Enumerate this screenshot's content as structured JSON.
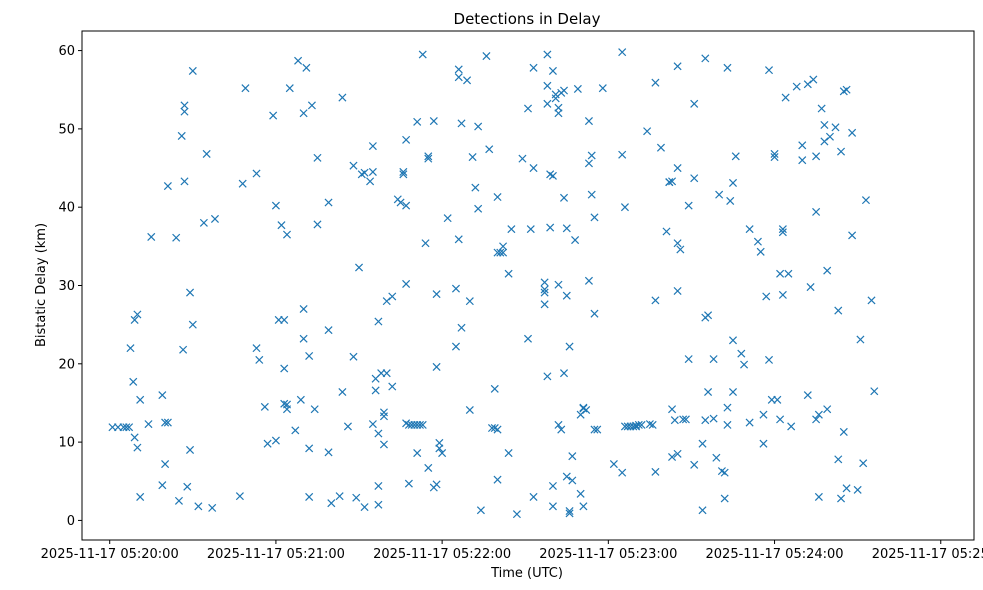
{
  "chart_data": {
    "type": "scatter",
    "title": "Detections in Delay",
    "xlabel": "Time (UTC)",
    "ylabel": "Bistatic Delay (km)",
    "marker": "x",
    "color": "#1f77b4",
    "xlim": [
      -10,
      312
    ],
    "ylim": [
      -2.5,
      62.5
    ],
    "x_units": "seconds after 2025-11-17 05:20:00",
    "x_ticks": [
      0,
      60,
      120,
      180,
      240,
      300
    ],
    "x_tick_labels": [
      "2025-11-17 05:20:00",
      "2025-11-17 05:21:00",
      "2025-11-17 05:22:00",
      "2025-11-17 05:23:00",
      "2025-11-17 05:24:00",
      "2025-11-17 05:25:00"
    ],
    "y_ticks": [
      0,
      10,
      20,
      30,
      40,
      50,
      60
    ],
    "y_tick_labels": [
      "0",
      "10",
      "20",
      "30",
      "40",
      "50",
      "60"
    ],
    "legend": false,
    "grid": false,
    "points": [
      [
        1,
        11.9
      ],
      [
        3,
        11.9
      ],
      [
        5,
        11.9
      ],
      [
        6,
        11.9
      ],
      [
        7,
        11.9
      ],
      [
        7.5,
        22
      ],
      [
        8.5,
        17.7
      ],
      [
        9,
        25.6
      ],
      [
        10,
        26.3
      ],
      [
        9,
        10.6
      ],
      [
        10,
        9.3
      ],
      [
        11,
        15.4
      ],
      [
        11,
        3
      ],
      [
        14,
        12.3
      ],
      [
        15,
        36.2
      ],
      [
        19,
        16
      ],
      [
        19,
        4.5
      ],
      [
        20,
        7.2
      ],
      [
        20,
        12.5
      ],
      [
        21,
        12.5
      ],
      [
        21,
        42.7
      ],
      [
        24,
        36.1
      ],
      [
        25,
        2.5
      ],
      [
        26,
        49.1
      ],
      [
        27,
        53
      ],
      [
        27,
        52.2
      ],
      [
        27,
        43.3
      ],
      [
        26.5,
        21.8
      ],
      [
        28,
        4.3
      ],
      [
        29,
        29.1
      ],
      [
        29,
        9
      ],
      [
        30,
        25
      ],
      [
        30,
        57.4
      ],
      [
        32,
        1.8
      ],
      [
        34,
        38
      ],
      [
        35,
        46.8
      ],
      [
        37,
        1.6
      ],
      [
        38,
        38.5
      ],
      [
        47,
        3.1
      ],
      [
        48,
        43
      ],
      [
        49,
        55.2
      ],
      [
        53,
        44.3
      ],
      [
        53,
        22
      ],
      [
        54,
        20.5
      ],
      [
        56,
        14.5
      ],
      [
        57,
        9.8
      ],
      [
        59,
        51.7
      ],
      [
        60,
        10.2
      ],
      [
        60,
        40.2
      ],
      [
        61,
        25.6
      ],
      [
        62,
        37.7
      ],
      [
        63,
        25.6
      ],
      [
        63,
        19.4
      ],
      [
        63,
        14.9
      ],
      [
        64,
        14.2
      ],
      [
        64,
        14.8
      ],
      [
        64,
        36.5
      ],
      [
        65,
        55.2
      ],
      [
        67,
        11.5
      ],
      [
        68,
        58.7
      ],
      [
        69,
        15.4
      ],
      [
        70,
        52
      ],
      [
        70,
        27
      ],
      [
        70,
        23.2
      ],
      [
        71,
        57.8
      ],
      [
        72,
        21
      ],
      [
        72,
        9.2
      ],
      [
        72,
        3
      ],
      [
        73,
        53
      ],
      [
        74,
        14.2
      ],
      [
        75,
        37.8
      ],
      [
        75,
        46.3
      ],
      [
        79,
        40.6
      ],
      [
        79,
        24.3
      ],
      [
        79,
        8.7
      ],
      [
        80,
        2.2
      ],
      [
        83,
        3.1
      ],
      [
        84,
        16.4
      ],
      [
        84,
        54
      ],
      [
        86,
        12
      ],
      [
        88,
        45.3
      ],
      [
        88,
        20.9
      ],
      [
        89,
        2.9
      ],
      [
        90,
        32.3
      ],
      [
        91,
        44.2
      ],
      [
        92,
        44.4
      ],
      [
        92,
        1.7
      ],
      [
        94,
        43.3
      ],
      [
        95,
        44.5
      ],
      [
        95,
        12.3
      ],
      [
        95,
        47.8
      ],
      [
        96,
        16.6
      ],
      [
        96,
        18.1
      ],
      [
        97,
        25.4
      ],
      [
        97,
        11.1
      ],
      [
        97,
        4.4
      ],
      [
        97,
        2
      ],
      [
        98,
        18.8
      ],
      [
        99,
        13.3
      ],
      [
        99,
        13.8
      ],
      [
        99,
        9.7
      ],
      [
        100,
        18.8
      ],
      [
        100,
        28
      ],
      [
        102,
        28.6
      ],
      [
        102,
        17.1
      ],
      [
        104,
        41
      ],
      [
        105,
        40.6
      ],
      [
        106,
        44.2
      ],
      [
        106,
        44.5
      ],
      [
        107,
        12.4
      ],
      [
        107,
        48.6
      ],
      [
        107,
        40.2
      ],
      [
        107,
        30.2
      ],
      [
        108,
        4.7
      ],
      [
        108,
        12.2
      ],
      [
        109,
        12.2
      ],
      [
        110,
        12.2
      ],
      [
        111,
        12.2
      ],
      [
        111,
        8.6
      ],
      [
        111,
        50.9
      ],
      [
        112,
        12.2
      ],
      [
        113,
        12.2
      ],
      [
        113,
        59.5
      ],
      [
        114,
        35.4
      ],
      [
        115,
        46.5
      ],
      [
        115,
        46.2
      ],
      [
        115,
        6.7
      ],
      [
        117,
        4.2
      ],
      [
        117,
        51
      ],
      [
        118,
        19.6
      ],
      [
        118,
        4.6
      ],
      [
        118,
        28.9
      ],
      [
        119,
        9.9
      ],
      [
        119,
        9.2
      ],
      [
        120,
        8.6
      ],
      [
        122,
        38.6
      ],
      [
        125,
        29.6
      ],
      [
        125,
        22.2
      ],
      [
        126,
        57.6
      ],
      [
        126,
        56.6
      ],
      [
        126,
        35.9
      ],
      [
        127,
        50.7
      ],
      [
        127,
        24.6
      ],
      [
        129,
        56.2
      ],
      [
        130,
        28
      ],
      [
        130,
        14.1
      ],
      [
        131,
        46.4
      ],
      [
        132,
        42.5
      ],
      [
        133,
        50.3
      ],
      [
        133,
        39.8
      ],
      [
        134,
        1.3
      ],
      [
        136,
        59.3
      ],
      [
        137,
        47.4
      ],
      [
        138,
        11.8
      ],
      [
        139,
        11.8
      ],
      [
        139,
        16.8
      ],
      [
        140,
        41.3
      ],
      [
        140,
        34.2
      ],
      [
        140,
        11.6
      ],
      [
        140,
        5.2
      ],
      [
        141,
        34.2
      ],
      [
        142,
        34.2
      ],
      [
        142,
        35
      ],
      [
        144,
        8.6
      ],
      [
        144,
        31.5
      ],
      [
        145,
        37.2
      ],
      [
        147,
        0.8
      ],
      [
        149,
        46.2
      ],
      [
        151,
        52.6
      ],
      [
        151,
        23.2
      ],
      [
        152,
        37.2
      ],
      [
        153,
        45
      ],
      [
        153,
        3
      ],
      [
        153,
        57.8
      ],
      [
        157,
        30.4
      ],
      [
        157,
        29.5
      ],
      [
        157,
        27.6
      ],
      [
        157,
        29.1
      ],
      [
        158,
        59.5
      ],
      [
        158,
        55.5
      ],
      [
        158,
        18.4
      ],
      [
        158,
        53.2
      ],
      [
        159,
        37.4
      ],
      [
        159,
        44.2
      ],
      [
        160,
        44
      ],
      [
        160,
        4.4
      ],
      [
        160,
        1.8
      ],
      [
        160,
        57.4
      ],
      [
        161,
        54.4
      ],
      [
        161,
        53.9
      ],
      [
        162,
        52.7
      ],
      [
        162,
        52
      ],
      [
        162,
        30.1
      ],
      [
        162,
        12.2
      ],
      [
        163,
        54.6
      ],
      [
        163,
        11.6
      ],
      [
        164,
        18.8
      ],
      [
        164,
        54.9
      ],
      [
        164,
        41.2
      ],
      [
        165,
        37.3
      ],
      [
        165,
        28.7
      ],
      [
        165,
        5.6
      ],
      [
        166,
        22.2
      ],
      [
        166,
        1.2
      ],
      [
        166,
        0.9
      ],
      [
        167,
        8.2
      ],
      [
        167,
        5.1
      ],
      [
        168,
        35.8
      ],
      [
        169,
        55.1
      ],
      [
        170,
        13.5
      ],
      [
        170,
        3.4
      ],
      [
        171,
        14.4
      ],
      [
        171,
        14.3
      ],
      [
        171,
        1.8
      ],
      [
        172,
        14.1
      ],
      [
        173,
        45.6
      ],
      [
        173,
        51
      ],
      [
        173,
        30.6
      ],
      [
        174,
        46.6
      ],
      [
        174,
        41.6
      ],
      [
        175,
        38.7
      ],
      [
        175,
        26.4
      ],
      [
        175,
        11.6
      ],
      [
        176,
        11.6
      ],
      [
        178,
        55.2
      ],
      [
        182,
        7.2
      ],
      [
        185,
        59.8
      ],
      [
        185,
        46.7
      ],
      [
        185,
        6.1
      ],
      [
        186,
        40
      ],
      [
        186,
        12
      ],
      [
        187,
        12
      ],
      [
        188,
        12
      ],
      [
        189,
        12
      ],
      [
        190,
        12
      ],
      [
        190,
        12.1
      ],
      [
        191,
        12.2
      ],
      [
        192,
        12.2
      ],
      [
        194,
        49.7
      ],
      [
        195,
        12.3
      ],
      [
        196,
        12.2
      ],
      [
        197,
        55.9
      ],
      [
        197,
        28.1
      ],
      [
        197,
        6.2
      ],
      [
        199,
        47.6
      ],
      [
        201,
        36.9
      ],
      [
        202,
        43.2
      ],
      [
        202,
        43.2
      ],
      [
        203,
        43.3
      ],
      [
        203,
        14.2
      ],
      [
        203,
        8.1
      ],
      [
        204,
        12.8
      ],
      [
        205,
        58
      ],
      [
        205,
        8.5
      ],
      [
        205,
        45
      ],
      [
        205,
        35.4
      ],
      [
        205,
        29.3
      ],
      [
        206,
        34.6
      ],
      [
        207,
        12.9
      ],
      [
        208,
        12.9
      ],
      [
        209,
        20.6
      ],
      [
        209,
        40.2
      ],
      [
        211,
        53.2
      ],
      [
        211,
        43.7
      ],
      [
        211,
        7.1
      ],
      [
        214,
        9.8
      ],
      [
        214,
        1.3
      ],
      [
        215,
        59
      ],
      [
        215,
        25.9
      ],
      [
        215,
        12.8
      ],
      [
        216,
        26.2
      ],
      [
        216,
        16.4
      ],
      [
        218,
        20.6
      ],
      [
        218,
        13
      ],
      [
        219,
        8
      ],
      [
        220,
        41.6
      ],
      [
        221,
        6.3
      ],
      [
        222,
        2.8
      ],
      [
        222,
        6.1
      ],
      [
        223,
        14.4
      ],
      [
        223,
        12.2
      ],
      [
        223,
        57.8
      ],
      [
        224,
        40.8
      ],
      [
        225,
        43.1
      ],
      [
        225,
        23
      ],
      [
        225,
        16.4
      ],
      [
        226,
        46.5
      ],
      [
        228,
        21.3
      ],
      [
        229,
        19.9
      ],
      [
        231,
        12.5
      ],
      [
        231,
        37.2
      ],
      [
        234,
        35.6
      ],
      [
        235,
        34.3
      ],
      [
        236,
        9.8
      ],
      [
        236,
        13.5
      ],
      [
        237,
        28.6
      ],
      [
        238,
        57.5
      ],
      [
        238,
        20.5
      ],
      [
        239,
        15.4
      ],
      [
        240,
        46.4
      ],
      [
        240,
        46.8
      ],
      [
        241,
        15.4
      ],
      [
        242,
        12.9
      ],
      [
        242,
        31.5
      ],
      [
        243,
        36.8
      ],
      [
        243,
        28.8
      ],
      [
        243,
        37.2
      ],
      [
        244,
        54
      ],
      [
        245,
        31.5
      ],
      [
        246,
        12
      ],
      [
        248,
        55.4
      ],
      [
        250,
        47.9
      ],
      [
        250,
        46
      ],
      [
        252,
        55.7
      ],
      [
        252,
        16
      ],
      [
        253,
        29.8
      ],
      [
        254,
        56.3
      ],
      [
        255,
        39.4
      ],
      [
        255,
        12.9
      ],
      [
        255,
        46.5
      ],
      [
        256,
        13.5
      ],
      [
        256,
        3
      ],
      [
        257,
        52.6
      ],
      [
        258,
        48.4
      ],
      [
        258,
        50.5
      ],
      [
        259,
        31.9
      ],
      [
        259,
        14.2
      ],
      [
        260,
        49
      ],
      [
        262,
        50.2
      ],
      [
        263,
        26.8
      ],
      [
        263,
        7.8
      ],
      [
        264,
        2.8
      ],
      [
        264,
        47.1
      ],
      [
        265,
        54.8
      ],
      [
        265,
        11.3
      ],
      [
        266,
        55
      ],
      [
        266,
        4.1
      ],
      [
        268,
        36.4
      ],
      [
        268,
        49.5
      ],
      [
        270,
        3.9
      ],
      [
        271,
        23.1
      ],
      [
        272,
        7.3
      ],
      [
        273,
        40.9
      ],
      [
        275,
        28.1
      ],
      [
        276,
        16.5
      ]
    ]
  }
}
